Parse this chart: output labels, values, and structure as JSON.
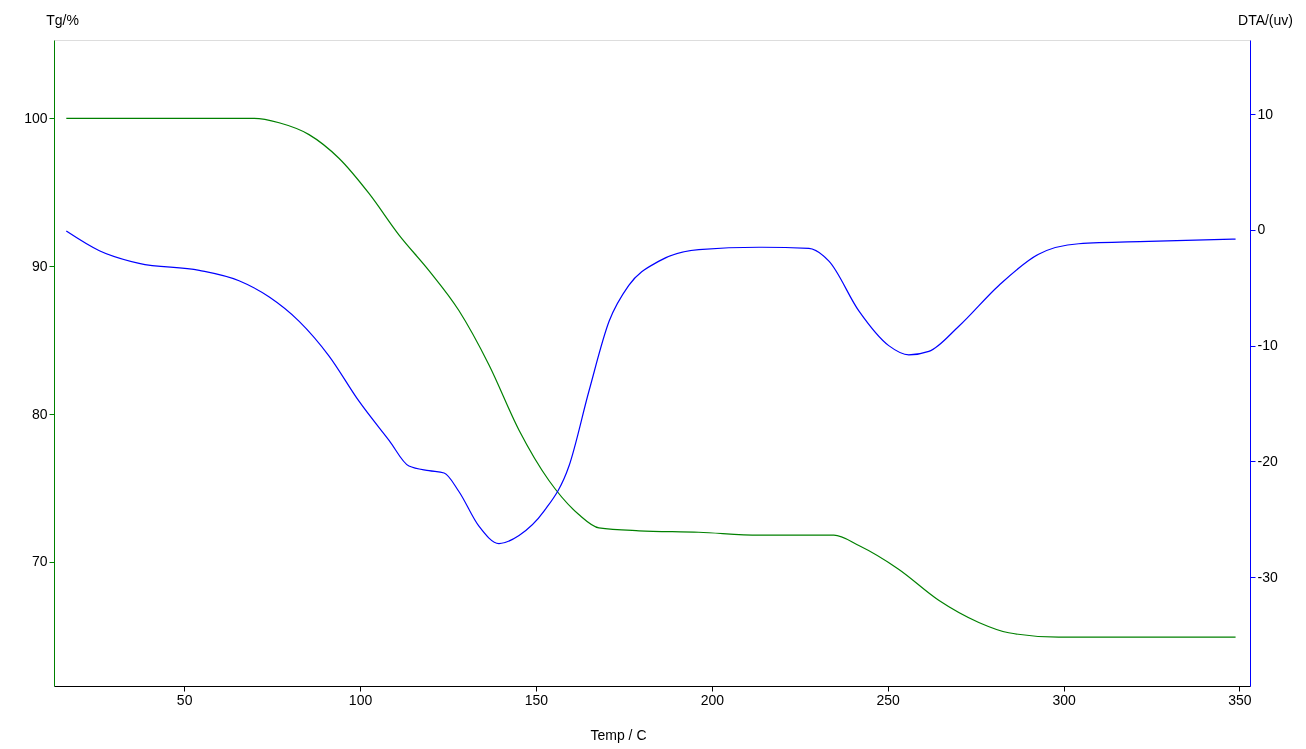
{
  "chart_data": {
    "type": "line",
    "xlabel": "Temp / C",
    "ylabel": "Tg/%",
    "y2label": "DTA/(uv)",
    "xlim": [
      13,
      353
    ],
    "xticks": [
      50,
      100,
      150,
      200,
      250,
      300,
      350
    ],
    "ylim": [
      61.6,
      105.3
    ],
    "yticks": [
      70,
      80,
      90,
      100
    ],
    "y2lim": [
      -39.4,
      16.4
    ],
    "y2ticks": [
      -30,
      -20,
      -10,
      0,
      10
    ],
    "series": [
      {
        "color": "#008000",
        "x": [
          16.5,
          69.9,
          77.0,
          85.5,
          94.0,
          102.6,
          111.1,
          119.6,
          128.1,
          136.7,
          145.2,
          153.7,
          162.2,
          167.9,
          179.3,
          196.3,
          213.4,
          234.7,
          241.8,
          253.1,
          264.5,
          275.9,
          284.4,
          298.6,
          348.9
        ],
        "values": [
          100,
          100,
          99.7,
          98.9,
          97.3,
          94.9,
          92.1,
          89.7,
          87.0,
          83.3,
          78.9,
          75.5,
          73.2,
          72.3,
          72.1,
          72.0,
          71.8,
          71.8,
          71.1,
          69.5,
          67.4,
          65.9,
          65.2,
          64.9,
          64.9
        ]
      },
      {
        "color": "#0000ff",
        "axis": "y2",
        "x": [
          16.5,
          25.9,
          37.2,
          54.3,
          65.6,
          74.2,
          82.7,
          91.2,
          99.7,
          108.3,
          113.9,
          119.6,
          123.9,
          128.1,
          133.8,
          139.5,
          145.2,
          152.3,
          159.4,
          165.1,
          170.8,
          176.4,
          185.0,
          196.3,
          213.4,
          227.6,
          233.3,
          241.8,
          250.3,
          256.0,
          261.7,
          270.3,
          281.6,
          292.9,
          304.3,
          324.2,
          348.9
        ],
        "values": [
          -0.1,
          -1.8,
          -2.9,
          -3.5,
          -4.4,
          -5.8,
          -7.9,
          -10.9,
          -14.8,
          -18.2,
          -20.4,
          -20.8,
          -21.0,
          -22.6,
          -25.6,
          -27.1,
          -26.4,
          -24.3,
          -20.4,
          -13.9,
          -7.9,
          -4.8,
          -2.7,
          -1.7,
          -1.5,
          -1.6,
          -2.7,
          -7.0,
          -10.0,
          -10.8,
          -10.5,
          -8.3,
          -4.8,
          -2.1,
          -1.2,
          -1.0,
          -0.8
        ]
      }
    ]
  }
}
